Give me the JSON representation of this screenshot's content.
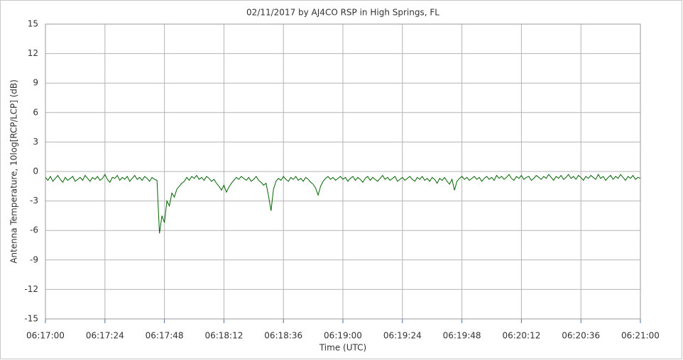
{
  "chart_data": {
    "type": "line",
    "title": "02/11/2017  by  AJ4CO RSP  in  High Springs, FL",
    "x_label": "Time (UTC)",
    "y_label": "Antenna Temperature, 10log[RCP/LCP] (dB)",
    "color": "#006400",
    "grid": true,
    "xlim": [
      22620,
      22860
    ],
    "xticks": [
      {
        "value": 22620,
        "label": "06:17:00"
      },
      {
        "value": 22644,
        "label": "06:17:24"
      },
      {
        "value": 22668,
        "label": "06:17:48"
      },
      {
        "value": 22692,
        "label": "06:18:12"
      },
      {
        "value": 22716,
        "label": "06:18:36"
      },
      {
        "value": 22740,
        "label": "06:19:00"
      },
      {
        "value": 22764,
        "label": "06:19:24"
      },
      {
        "value": 22788,
        "label": "06:19:48"
      },
      {
        "value": 22812,
        "label": "06:20:12"
      },
      {
        "value": 22836,
        "label": "06:20:36"
      },
      {
        "value": 22860,
        "label": "06:21:00"
      }
    ],
    "ylim": [
      -15,
      15
    ],
    "yticks": [
      -15,
      -12,
      -9,
      -6,
      -3,
      0,
      3,
      6,
      9,
      12,
      15
    ],
    "x": [
      22620,
      22621,
      22622,
      22623,
      22624,
      22625,
      22626,
      22627,
      22628,
      22629,
      22630,
      22631,
      22632,
      22633,
      22634,
      22635,
      22636,
      22637,
      22638,
      22639,
      22640,
      22641,
      22642,
      22643,
      22644,
      22645,
      22646,
      22647,
      22648,
      22649,
      22650,
      22651,
      22652,
      22653,
      22654,
      22655,
      22656,
      22657,
      22658,
      22659,
      22660,
      22661,
      22662,
      22663,
      22664,
      22665,
      22666,
      22667,
      22668,
      22669,
      22670,
      22671,
      22672,
      22673,
      22674,
      22675,
      22676,
      22677,
      22678,
      22679,
      22680,
      22681,
      22682,
      22683,
      22684,
      22685,
      22686,
      22687,
      22688,
      22689,
      22690,
      22691,
      22692,
      22693,
      22694,
      22695,
      22696,
      22697,
      22698,
      22699,
      22700,
      22701,
      22702,
      22703,
      22704,
      22705,
      22706,
      22707,
      22708,
      22709,
      22710,
      22711,
      22712,
      22713,
      22714,
      22715,
      22716,
      22717,
      22718,
      22719,
      22720,
      22721,
      22722,
      22723,
      22724,
      22725,
      22726,
      22727,
      22728,
      22729,
      22730,
      22731,
      22732,
      22733,
      22734,
      22735,
      22736,
      22737,
      22738,
      22739,
      22740,
      22741,
      22742,
      22743,
      22744,
      22745,
      22746,
      22747,
      22748,
      22749,
      22750,
      22751,
      22752,
      22753,
      22754,
      22755,
      22756,
      22757,
      22758,
      22759,
      22760,
      22761,
      22762,
      22763,
      22764,
      22765,
      22766,
      22767,
      22768,
      22769,
      22770,
      22771,
      22772,
      22773,
      22774,
      22775,
      22776,
      22777,
      22778,
      22779,
      22780,
      22781,
      22782,
      22783,
      22784,
      22785,
      22786,
      22787,
      22788,
      22789,
      22790,
      22791,
      22792,
      22793,
      22794,
      22795,
      22796,
      22797,
      22798,
      22799,
      22800,
      22801,
      22802,
      22803,
      22804,
      22805,
      22806,
      22807,
      22808,
      22809,
      22810,
      22811,
      22812,
      22813,
      22814,
      22815,
      22816,
      22817,
      22818,
      22819,
      22820,
      22821,
      22822,
      22823,
      22824,
      22825,
      22826,
      22827,
      22828,
      22829,
      22830,
      22831,
      22832,
      22833,
      22834,
      22835,
      22836,
      22837,
      22838,
      22839,
      22840,
      22841,
      22842,
      22843,
      22844,
      22845,
      22846,
      22847,
      22848,
      22849,
      22850,
      22851,
      22852,
      22853,
      22854,
      22855,
      22856,
      22857,
      22858,
      22859,
      22860
    ],
    "values": [
      -0.6,
      -0.9,
      -0.5,
      -1.0,
      -0.7,
      -0.4,
      -0.8,
      -1.1,
      -0.6,
      -0.9,
      -0.7,
      -0.5,
      -1.0,
      -0.8,
      -0.6,
      -0.9,
      -0.4,
      -0.7,
      -1.0,
      -0.6,
      -0.8,
      -0.5,
      -0.9,
      -0.7,
      -0.3,
      -0.8,
      -1.1,
      -0.6,
      -0.7,
      -0.4,
      -0.9,
      -0.6,
      -0.8,
      -0.5,
      -1.0,
      -0.7,
      -0.4,
      -0.8,
      -0.6,
      -0.9,
      -0.5,
      -0.7,
      -1.0,
      -0.6,
      -0.8,
      -0.9,
      -6.3,
      -4.5,
      -5.2,
      -3.0,
      -3.5,
      -2.2,
      -2.6,
      -1.8,
      -1.5,
      -1.2,
      -1.0,
      -0.6,
      -0.9,
      -0.5,
      -0.7,
      -0.4,
      -0.8,
      -0.6,
      -0.9,
      -0.5,
      -0.7,
      -1.0,
      -0.8,
      -1.2,
      -1.5,
      -1.9,
      -1.4,
      -2.1,
      -1.6,
      -1.2,
      -0.9,
      -0.6,
      -0.8,
      -0.5,
      -0.7,
      -0.9,
      -0.6,
      -1.0,
      -0.8,
      -0.5,
      -0.9,
      -1.1,
      -1.4,
      -1.2,
      -2.5,
      -4.0,
      -1.8,
      -1.0,
      -0.7,
      -0.9,
      -0.5,
      -0.8,
      -1.0,
      -0.6,
      -0.8,
      -0.5,
      -0.9,
      -0.7,
      -1.0,
      -0.6,
      -0.8,
      -1.1,
      -1.3,
      -1.7,
      -2.4,
      -1.5,
      -1.0,
      -0.7,
      -0.5,
      -0.8,
      -0.6,
      -0.9,
      -0.7,
      -0.5,
      -0.8,
      -0.6,
      -1.0,
      -0.7,
      -0.5,
      -0.9,
      -0.6,
      -0.8,
      -1.1,
      -0.7,
      -0.5,
      -0.9,
      -0.6,
      -0.8,
      -1.0,
      -0.7,
      -0.4,
      -0.8,
      -0.6,
      -0.9,
      -0.7,
      -0.5,
      -1.0,
      -0.8,
      -0.6,
      -0.9,
      -0.7,
      -0.5,
      -0.8,
      -1.0,
      -0.6,
      -0.8,
      -0.5,
      -0.9,
      -0.7,
      -1.0,
      -0.6,
      -0.8,
      -1.2,
      -0.7,
      -0.9,
      -0.6,
      -1.0,
      -1.3,
      -0.8,
      -1.9,
      -1.0,
      -0.7,
      -0.5,
      -0.8,
      -0.6,
      -0.9,
      -0.7,
      -0.5,
      -0.8,
      -0.6,
      -1.0,
      -0.7,
      -0.5,
      -0.8,
      -0.6,
      -0.9,
      -0.4,
      -0.7,
      -0.5,
      -0.8,
      -0.6,
      -0.3,
      -0.7,
      -0.9,
      -0.5,
      -0.7,
      -0.4,
      -0.8,
      -0.6,
      -0.5,
      -0.9,
      -0.7,
      -0.4,
      -0.6,
      -0.8,
      -0.5,
      -0.7,
      -0.3,
      -0.6,
      -0.9,
      -0.5,
      -0.7,
      -0.4,
      -0.8,
      -0.6,
      -0.3,
      -0.7,
      -0.5,
      -0.8,
      -0.4,
      -0.6,
      -0.9,
      -0.5,
      -0.7,
      -0.4,
      -0.6,
      -0.8,
      -0.3,
      -0.7,
      -0.5,
      -0.9,
      -0.6,
      -0.4,
      -0.8,
      -0.5,
      -0.7,
      -0.3,
      -0.6,
      -0.9,
      -0.5,
      -0.7,
      -0.4,
      -0.8,
      -0.6,
      -0.7
    ]
  }
}
